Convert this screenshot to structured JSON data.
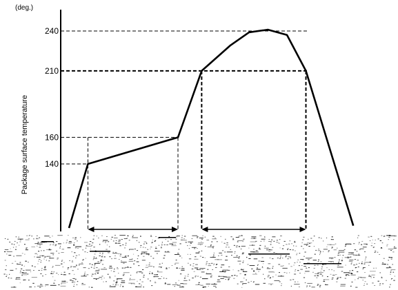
{
  "chart_data": {
    "type": "line",
    "title": "",
    "xlabel": "",
    "ylabel": "Package surface temperature",
    "yunit": "(deg.)",
    "yticks": [
      140,
      160,
      210,
      240
    ],
    "grid": false,
    "legend": "none",
    "series": [
      {
        "x": [
          0,
          4,
          23,
          28,
          34,
          38,
          42,
          46,
          50,
          60
        ],
        "values": [
          0,
          140,
          160,
          210,
          229,
          239,
          241,
          237,
          210,
          5
        ]
      }
    ],
    "reference_levels": [
      140,
      160,
      210,
      240
    ],
    "intervals": [
      {
        "from_x": 4,
        "to_x": 23,
        "level": 160
      },
      {
        "from_x": 28,
        "to_x": 50,
        "level": 210
      }
    ],
    "colors": {
      "line": "#000000",
      "background": "#ffffff"
    }
  }
}
